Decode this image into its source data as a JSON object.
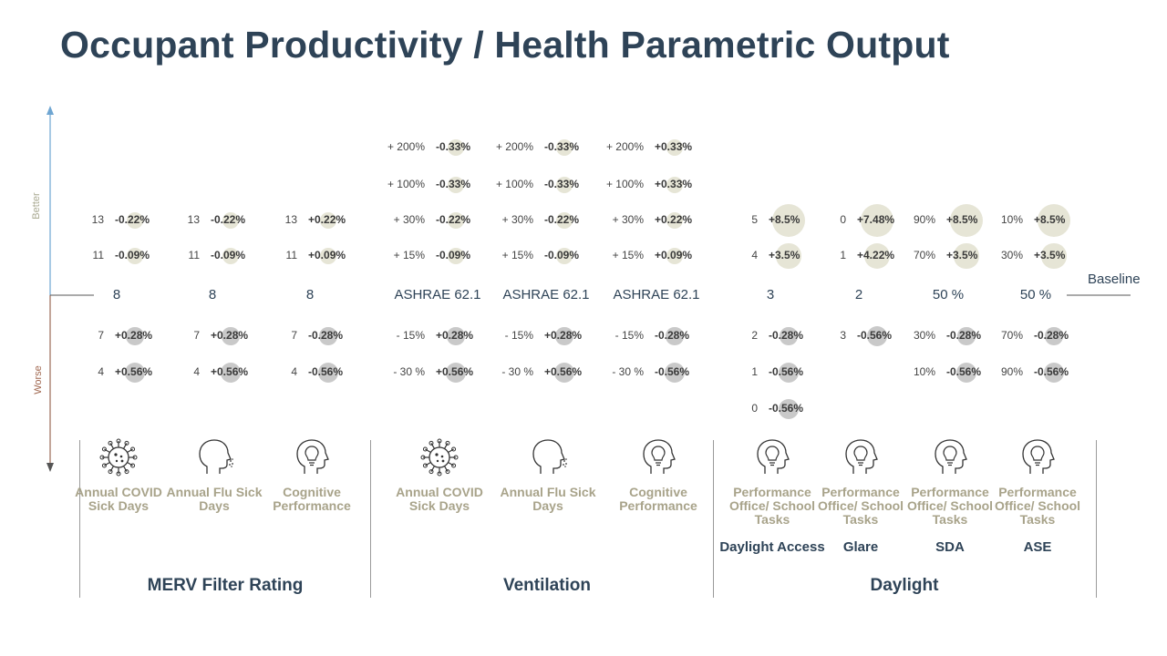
{
  "title": "Occupant Productivity / Health Parametric Output",
  "axis": {
    "better": "Better",
    "worse": "Worse",
    "baseline_label": "Baseline"
  },
  "groups": [
    "MERV Filter Rating",
    "Ventilation",
    "Daylight"
  ],
  "columns": [
    {
      "baseline": "8",
      "metric": "Annual COVID Sick Days",
      "sub": "",
      "icon": "covid-virus-icon",
      "up": [
        [
          "13",
          "-0.22%"
        ],
        [
          "11",
          "-0.09%"
        ]
      ],
      "down": [
        [
          "7",
          "+0.28%"
        ],
        [
          "4",
          "+0.56%"
        ]
      ]
    },
    {
      "baseline": "8",
      "metric": "Annual Flu Sick Days",
      "sub": "",
      "icon": "flu-head-icon",
      "up": [
        [
          "13",
          "-0.22%"
        ],
        [
          "11",
          "-0.09%"
        ]
      ],
      "down": [
        [
          "7",
          "+0.28%"
        ],
        [
          "4",
          "+0.56%"
        ]
      ]
    },
    {
      "baseline": "8",
      "metric": "Cognitive Performance",
      "sub": "",
      "icon": "lightbulb-head-icon",
      "up": [
        [
          "13",
          "+0.22%"
        ],
        [
          "11",
          "+0.09%"
        ]
      ],
      "down": [
        [
          "7",
          "-0.28%"
        ],
        [
          "4",
          "-0.56%"
        ]
      ]
    },
    {
      "baseline": "ASHRAE 62.1",
      "metric": "Annual COVID Sick Days",
      "sub": "",
      "icon": "covid-virus-icon",
      "up": [
        [
          "+ 200%",
          "-0.33%"
        ],
        [
          "+ 100%",
          "-0.33%"
        ],
        [
          "+ 30%",
          "-0.22%"
        ],
        [
          "+ 15%",
          "-0.09%"
        ]
      ],
      "down": [
        [
          "- 15%",
          "+0.28%"
        ],
        [
          "- 30 %",
          "+0.56%"
        ]
      ]
    },
    {
      "baseline": "ASHRAE 62.1",
      "metric": "Annual Flu Sick Days",
      "sub": "",
      "icon": "flu-head-icon",
      "up": [
        [
          "+ 200%",
          "-0.33%"
        ],
        [
          "+ 100%",
          "-0.33%"
        ],
        [
          "+ 30%",
          "-0.22%"
        ],
        [
          "+ 15%",
          "-0.09%"
        ]
      ],
      "down": [
        [
          "- 15%",
          "+0.28%"
        ],
        [
          "- 30 %",
          "+0.56%"
        ]
      ]
    },
    {
      "baseline": "ASHRAE 62.1",
      "metric": "Cognitive Performance",
      "sub": "",
      "icon": "lightbulb-head-icon",
      "up": [
        [
          "+ 200%",
          "+0.33%"
        ],
        [
          "+ 100%",
          "+0.33%"
        ],
        [
          "+ 30%",
          "+0.22%"
        ],
        [
          "+ 15%",
          "+0.09%"
        ]
      ],
      "down": [
        [
          "- 15%",
          "-0.28%"
        ],
        [
          "- 30 %",
          "-0.56%"
        ]
      ]
    },
    {
      "baseline": "3",
      "metric": "Performance Office/ School Tasks",
      "sub": "Daylight Access",
      "icon": "lightbulb-head-icon",
      "up": [
        [
          "5",
          "+8.5%"
        ],
        [
          "4",
          "+3.5%"
        ]
      ],
      "down": [
        [
          "2",
          "-0.28%"
        ],
        [
          "1",
          "-0.56%"
        ],
        [
          "0",
          "-0.56%"
        ]
      ]
    },
    {
      "baseline": "2",
      "metric": "Performance Office/ School Tasks",
      "sub": "Glare",
      "icon": "lightbulb-head-icon",
      "up": [
        [
          "0",
          "+7.48%"
        ],
        [
          "1",
          "+4.22%"
        ]
      ],
      "down": [
        [
          "3",
          "-0.56%"
        ]
      ]
    },
    {
      "baseline": "50 %",
      "metric": "Performance Office/ School Tasks",
      "sub": "SDA",
      "icon": "lightbulb-head-icon",
      "up": [
        [
          "90%",
          "+8.5%"
        ],
        [
          "70%",
          "+3.5%"
        ]
      ],
      "down": [
        [
          "30%",
          "-0.28%"
        ],
        [
          "10%",
          "-0.56%"
        ]
      ]
    },
    {
      "baseline": "50 %",
      "metric": "Performance Office/ School Tasks",
      "sub": "ASE",
      "icon": "lightbulb-head-icon",
      "up": [
        [
          "10%",
          "+8.5%"
        ],
        [
          "30%",
          "+3.5%"
        ]
      ],
      "down": [
        [
          "70%",
          "-0.28%"
        ],
        [
          "90%",
          "-0.56%"
        ]
      ]
    }
  ],
  "colors": {
    "title": "#2e4357",
    "better_axis": "#6fa6d2",
    "worse_axis": "#a0674f",
    "up_circle": "#e6e5d6",
    "down_circle": "#c9c9c9",
    "metric_text": "#a8a38a"
  }
}
